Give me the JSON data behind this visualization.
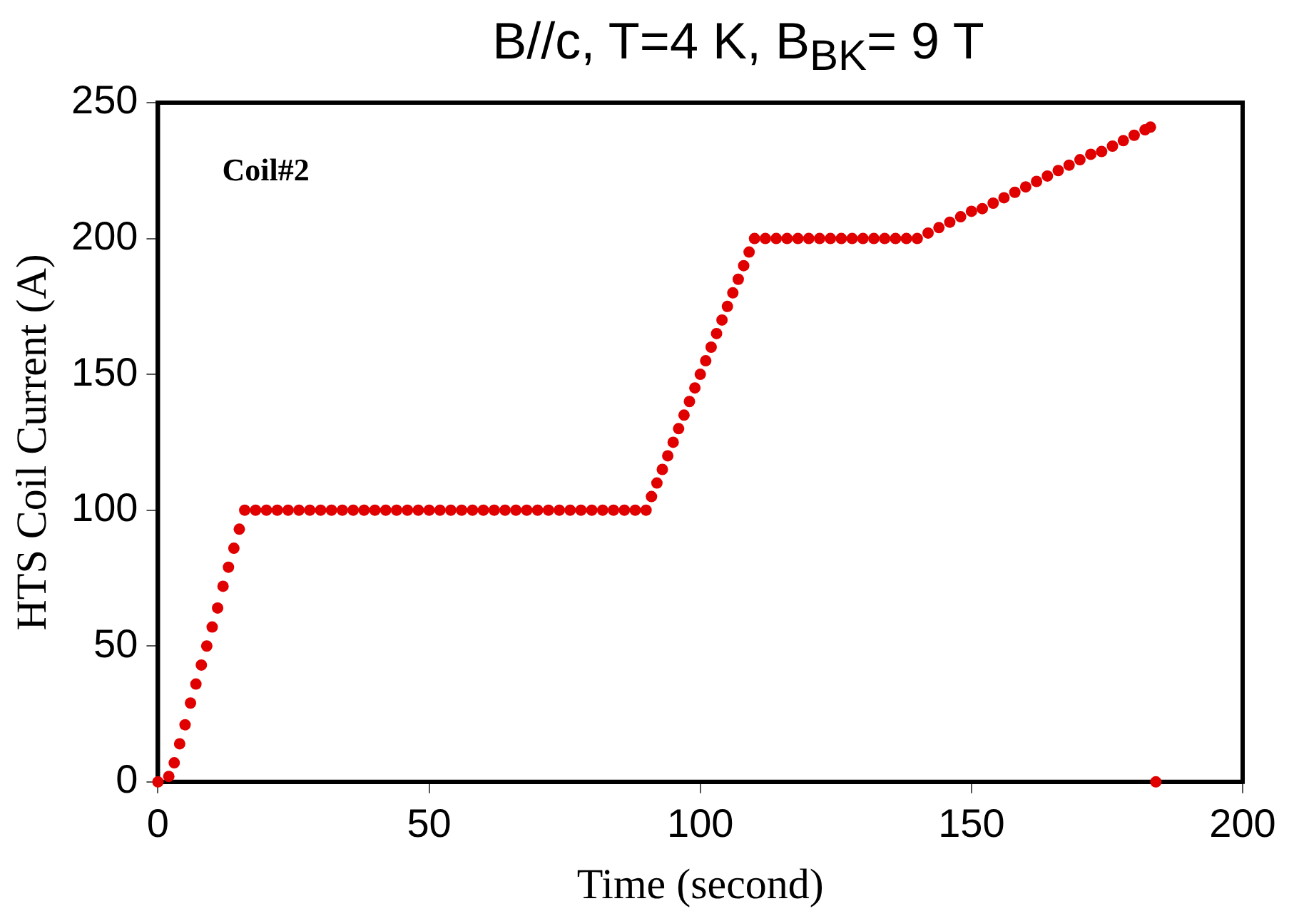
{
  "chart_data": {
    "type": "scatter",
    "title": "B//c, T=4 K, B$_{BK}$= 9 T",
    "xlabel": "Time (second)",
    "ylabel": "HTS Coil Current (A)",
    "annotations": [
      "Coil#2"
    ],
    "xlim": [
      0,
      200
    ],
    "xticks": [
      0,
      50,
      100,
      150,
      200
    ],
    "ylim": [
      0,
      250
    ],
    "yticks": [
      0,
      50,
      100,
      150,
      200,
      250
    ],
    "grid": false,
    "legend": false,
    "marker": "circle",
    "series": [
      {
        "color": "#e00000",
        "x": [
          0,
          2,
          3,
          4,
          5,
          6,
          7,
          8,
          9,
          10,
          11,
          12,
          13,
          14,
          15,
          16,
          18,
          20,
          22,
          24,
          26,
          28,
          30,
          32,
          34,
          36,
          38,
          40,
          42,
          44,
          46,
          48,
          50,
          52,
          54,
          56,
          58,
          60,
          62,
          64,
          66,
          68,
          70,
          72,
          74,
          76,
          78,
          80,
          82,
          84,
          86,
          88,
          90,
          91,
          92,
          93,
          94,
          95,
          96,
          97,
          98,
          99,
          100,
          101,
          102,
          103,
          104,
          105,
          106,
          107,
          108,
          109,
          110,
          112,
          114,
          116,
          118,
          120,
          122,
          124,
          126,
          128,
          130,
          132,
          134,
          136,
          138,
          140,
          142,
          144,
          146,
          148,
          150,
          152,
          154,
          156,
          158,
          160,
          162,
          164,
          166,
          168,
          170,
          172,
          174,
          176,
          178,
          180,
          182,
          183,
          184
        ],
        "values": [
          0,
          2,
          7,
          14,
          21,
          29,
          36,
          43,
          50,
          57,
          64,
          72,
          79,
          86,
          93,
          100,
          100,
          100,
          100,
          100,
          100,
          100,
          100,
          100,
          100,
          100,
          100,
          100,
          100,
          100,
          100,
          100,
          100,
          100,
          100,
          100,
          100,
          100,
          100,
          100,
          100,
          100,
          100,
          100,
          100,
          100,
          100,
          100,
          100,
          100,
          100,
          100,
          100,
          105,
          110,
          115,
          120,
          125,
          130,
          135,
          140,
          145,
          150,
          155,
          160,
          165,
          170,
          175,
          180,
          185,
          190,
          195,
          200,
          200,
          200,
          200,
          200,
          200,
          200,
          200,
          200,
          200,
          200,
          200,
          200,
          200,
          200,
          200,
          202,
          204,
          206,
          208,
          210,
          211,
          213,
          215,
          217,
          219,
          221,
          223,
          225,
          227,
          229,
          231,
          232,
          234,
          236,
          238,
          240,
          241,
          0
        ]
      }
    ]
  }
}
